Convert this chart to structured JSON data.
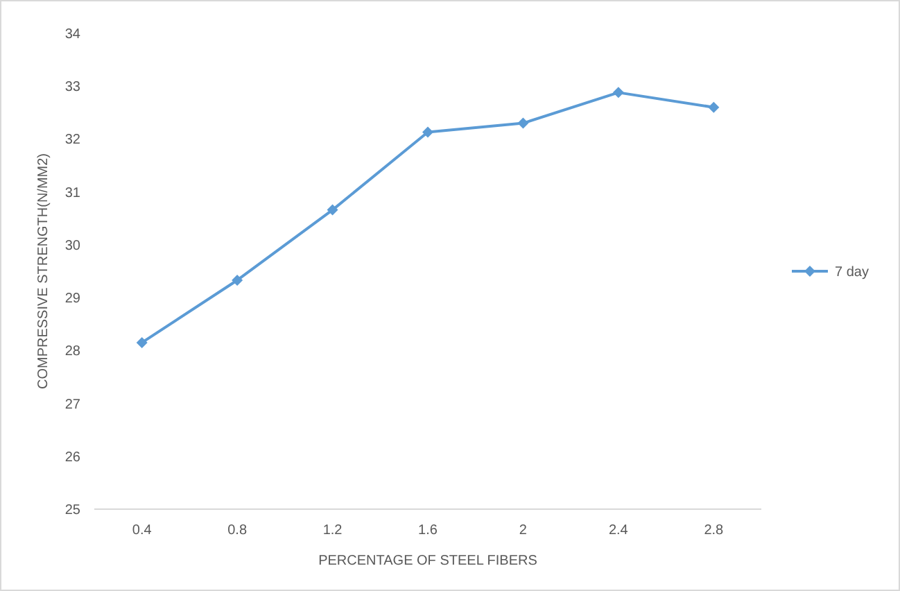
{
  "chart_data": {
    "type": "line",
    "xlabel": "PERCENTAGE OF STEEL FIBERS",
    "ylabel": "COMPRESSIVE STRENGTH(N/MM2)",
    "categories": [
      "0.4",
      "0.8",
      "1.2",
      "1.6",
      "2",
      "2.4",
      "2.8"
    ],
    "series": [
      {
        "name": "7 day",
        "color": "#5b9bd5",
        "values": [
          28.15,
          29.33,
          30.66,
          32.13,
          32.3,
          32.88,
          32.6
        ]
      }
    ],
    "ylim": [
      25,
      34
    ],
    "yticks": [
      25,
      26,
      27,
      28,
      29,
      30,
      31,
      32,
      33,
      34
    ],
    "grid": false,
    "legend": "right",
    "marker": "diamond",
    "line_style": "solid"
  }
}
